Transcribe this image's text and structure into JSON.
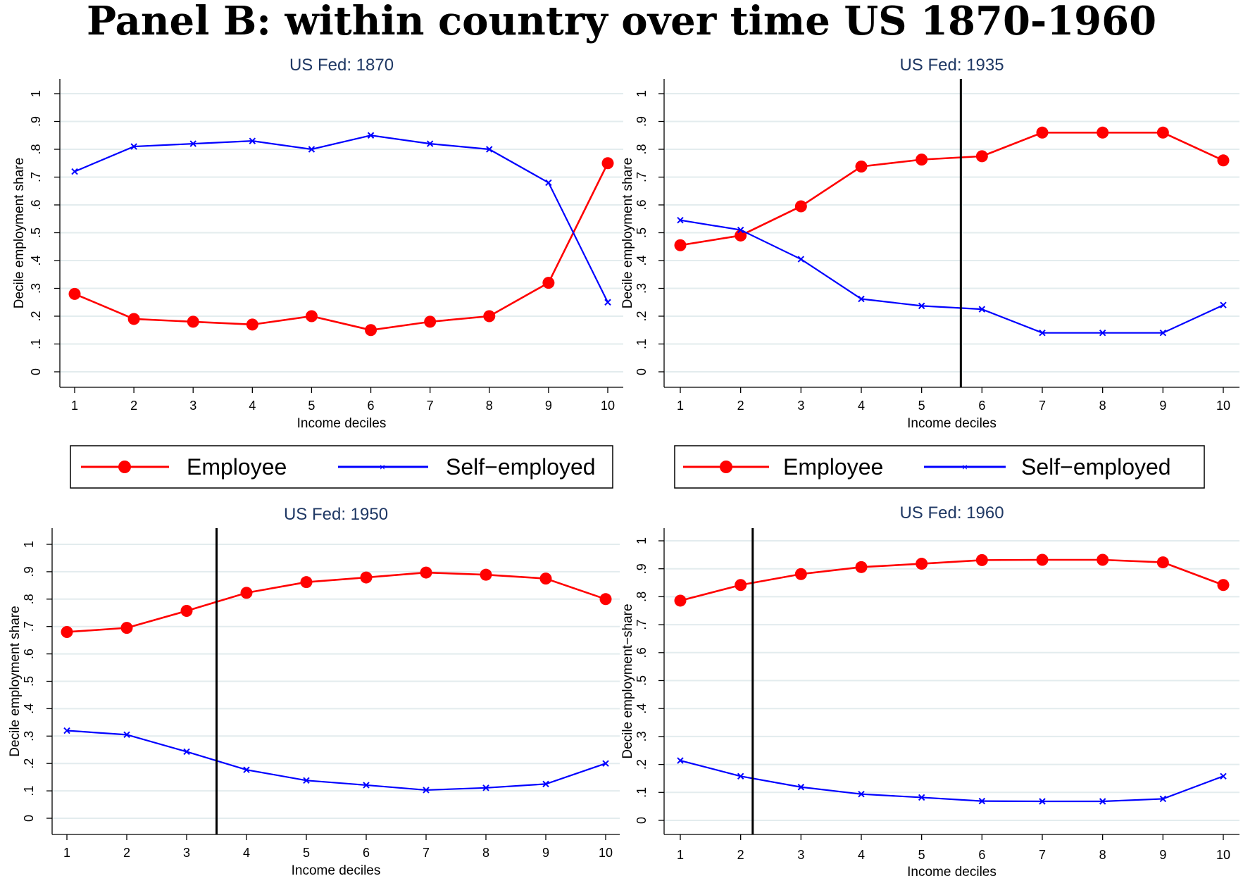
{
  "page_title": "Panel B: within country over time US 1870-1960",
  "colors": {
    "employee": "#ff0000",
    "self_employed": "#0000ff",
    "grid": "#e3ecee",
    "title": "#1f3864"
  },
  "legend": {
    "employee_label": "Employee",
    "self_employed_label": "Self−employed"
  },
  "chart_data": [
    {
      "type": "line",
      "title": "US Fed: 1870",
      "xlabel": "Income deciles",
      "ylabel": "Decile employment share",
      "x": [
        1,
        2,
        3,
        4,
        5,
        6,
        7,
        8,
        9,
        10
      ],
      "xlim": [
        1,
        10
      ],
      "ylim": [
        0,
        1
      ],
      "yticks": [
        "0",
        ".1",
        ".2",
        ".3",
        ".4",
        ".5",
        ".6",
        ".7",
        ".8",
        ".9",
        "1"
      ],
      "vline": null,
      "series": [
        {
          "name": "Employee",
          "marker": "circle",
          "values": [
            0.28,
            0.19,
            0.18,
            0.17,
            0.2,
            0.15,
            0.18,
            0.2,
            0.32,
            0.75
          ]
        },
        {
          "name": "Self−employed",
          "marker": "x",
          "values": [
            0.72,
            0.81,
            0.82,
            0.83,
            0.8,
            0.85,
            0.82,
            0.8,
            0.68,
            0.25
          ]
        }
      ]
    },
    {
      "type": "line",
      "title": "US Fed: 1935",
      "xlabel": "Income deciles",
      "ylabel": "Decile employment share",
      "x": [
        1,
        2,
        3,
        4,
        5,
        6,
        7,
        8,
        9,
        10
      ],
      "xlim": [
        1,
        10
      ],
      "ylim": [
        0,
        1
      ],
      "yticks": [
        "0",
        ".1",
        ".2",
        ".3",
        ".4",
        ".5",
        ".6",
        ".7",
        ".8",
        ".9",
        "1"
      ],
      "vline": 5.65,
      "series": [
        {
          "name": "Employee",
          "marker": "circle",
          "values": [
            0.455,
            0.49,
            0.595,
            0.738,
            0.763,
            0.775,
            0.86,
            0.86,
            0.86,
            0.76
          ]
        },
        {
          "name": "Self−employed",
          "marker": "x",
          "values": [
            0.545,
            0.51,
            0.405,
            0.262,
            0.237,
            0.225,
            0.14,
            0.14,
            0.14,
            0.24
          ]
        }
      ]
    },
    {
      "type": "line",
      "title": "US Fed: 1950",
      "xlabel": "Income deciles",
      "ylabel": "Decile employment share",
      "x": [
        1,
        2,
        3,
        4,
        5,
        6,
        7,
        8,
        9,
        10
      ],
      "xlim": [
        1,
        10
      ],
      "ylim": [
        0,
        1
      ],
      "yticks": [
        "0",
        ".1",
        ".2",
        ".3",
        ".4",
        ".5",
        ".6",
        ".7",
        ".8",
        ".9",
        "1"
      ],
      "vline": 3.5,
      "series": [
        {
          "name": "Employee",
          "marker": "circle",
          "values": [
            0.68,
            0.695,
            0.757,
            0.823,
            0.862,
            0.879,
            0.897,
            0.889,
            0.875,
            0.8
          ]
        },
        {
          "name": "Self−employed",
          "marker": "x",
          "values": [
            0.32,
            0.305,
            0.243,
            0.177,
            0.138,
            0.121,
            0.103,
            0.111,
            0.125,
            0.2
          ]
        }
      ]
    },
    {
      "type": "line",
      "title": "US Fed: 1960",
      "xlabel": "Income deciles",
      "ylabel": "Decile employment−share",
      "x": [
        1,
        2,
        3,
        4,
        5,
        6,
        7,
        8,
        9,
        10
      ],
      "xlim": [
        1,
        10
      ],
      "ylim": [
        0,
        1
      ],
      "yticks": [
        "0",
        ".1",
        ".2",
        ".3",
        ".4",
        ".5",
        ".6",
        ".7",
        ".8",
        ".9",
        "1"
      ],
      "vline": 2.2,
      "series": [
        {
          "name": "Employee",
          "marker": "circle",
          "values": [
            0.786,
            0.842,
            0.881,
            0.906,
            0.918,
            0.931,
            0.932,
            0.932,
            0.923,
            0.842
          ]
        },
        {
          "name": "Self−employed",
          "marker": "x",
          "values": [
            0.214,
            0.158,
            0.119,
            0.094,
            0.082,
            0.069,
            0.068,
            0.068,
            0.077,
            0.158
          ]
        }
      ]
    }
  ]
}
